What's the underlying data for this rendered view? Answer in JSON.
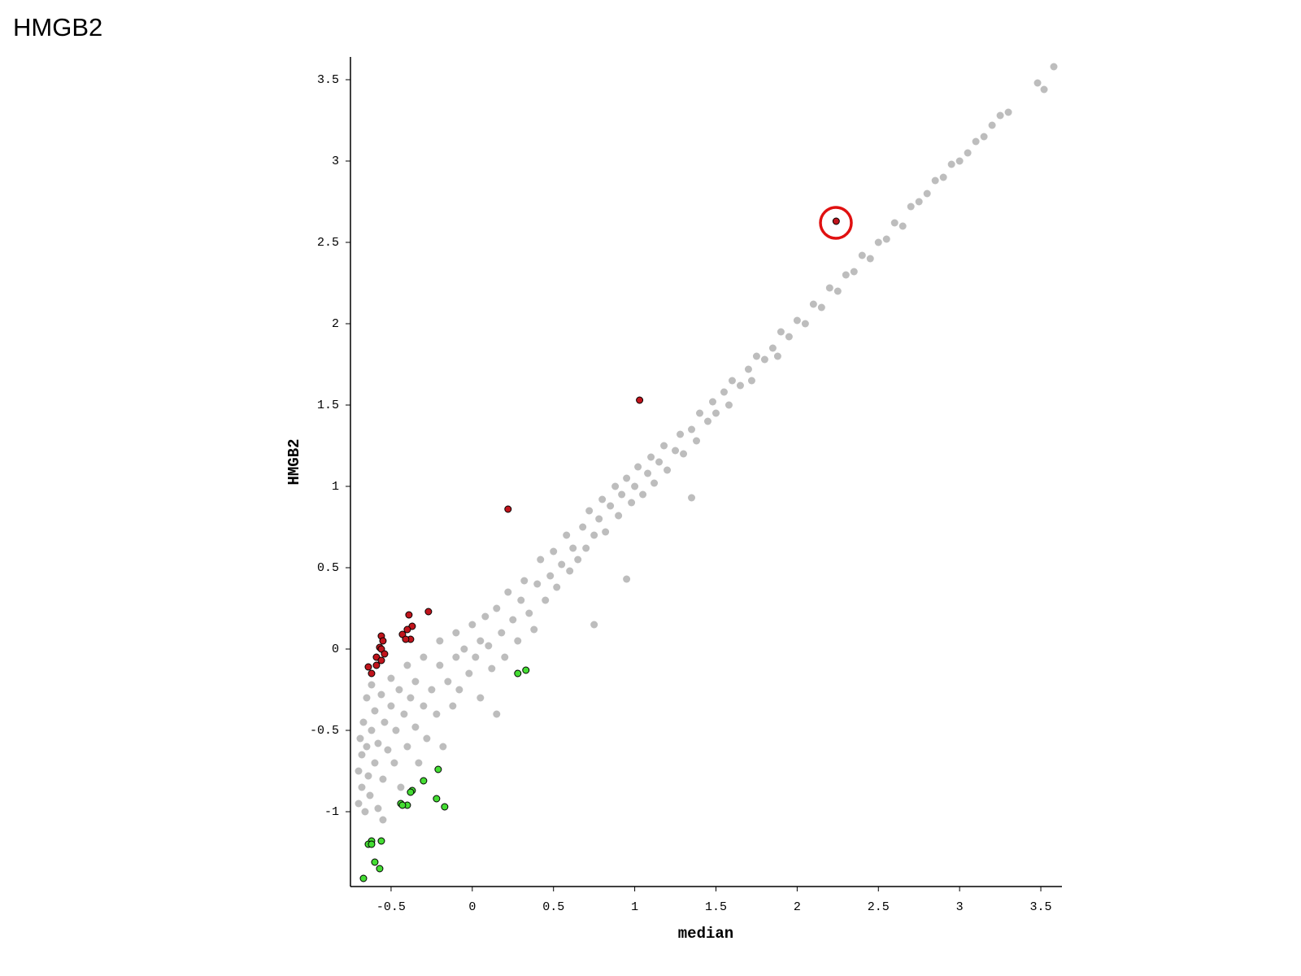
{
  "title": "HMGB2",
  "chart_data": {
    "type": "scatter",
    "xlabel": "median",
    "ylabel": "HMGB2",
    "xlim": [
      -0.75,
      3.63
    ],
    "ylim": [
      -1.46,
      3.64
    ],
    "xticks": [
      -0.5,
      0,
      0.5,
      1,
      1.5,
      2,
      2.5,
      3,
      3.5
    ],
    "yticks": [
      -1,
      -0.5,
      0,
      0.5,
      1,
      1.5,
      2,
      2.5,
      3,
      3.5
    ],
    "series": [
      {
        "color": "#bdbdbd",
        "x": [
          -0.7,
          -0.7,
          -0.69,
          -0.68,
          -0.68,
          -0.67,
          -0.66,
          -0.65,
          -0.65,
          -0.64,
          -0.63,
          -0.62,
          -0.62,
          -0.6,
          -0.6,
          -0.58,
          -0.58,
          -0.56,
          -0.55,
          -0.54,
          -0.52,
          -0.5,
          -0.5,
          -0.48,
          -0.47,
          -0.45,
          -0.44,
          -0.42,
          -0.4,
          -0.4,
          -0.38,
          -0.35,
          -0.35,
          -0.33,
          -0.3,
          -0.3,
          -0.28,
          -0.25,
          -0.22,
          -0.2,
          -0.2,
          -0.18,
          -0.15,
          -0.12,
          -0.1,
          -0.1,
          -0.08,
          -0.05,
          -0.02,
          0.0,
          0.02,
          0.05,
          0.05,
          0.08,
          0.1,
          0.12,
          0.15,
          0.18,
          0.2,
          0.22,
          0.25,
          0.28,
          0.3,
          0.32,
          0.35,
          0.38,
          0.4,
          0.42,
          0.45,
          0.48,
          0.5,
          0.52,
          0.55,
          0.58,
          0.6,
          0.62,
          0.65,
          0.68,
          0.7,
          0.72,
          0.75,
          0.78,
          0.8,
          0.82,
          0.85,
          0.88,
          0.9,
          0.92,
          0.95,
          0.98,
          1.0,
          1.02,
          1.05,
          1.08,
          1.1,
          1.12,
          1.15,
          1.18,
          1.2,
          1.25,
          1.28,
          1.3,
          1.35,
          1.38,
          1.4,
          1.45,
          1.48,
          1.5,
          1.55,
          1.58,
          1.6,
          1.65,
          1.7,
          1.72,
          1.75,
          1.8,
          1.85,
          1.88,
          1.9,
          1.95,
          2.0,
          2.05,
          2.1,
          2.15,
          2.2,
          2.25,
          2.3,
          2.35,
          2.4,
          2.45,
          2.5,
          2.55,
          2.6,
          2.65,
          2.7,
          2.75,
          2.8,
          2.85,
          2.9,
          2.95,
          3.0,
          3.05,
          3.1,
          3.15,
          3.2,
          3.25,
          3.3,
          3.48,
          3.52,
          3.58,
          0.95,
          0.75,
          1.35,
          0.15,
          -0.55
        ],
        "y": [
          -0.95,
          -0.75,
          -0.55,
          -0.85,
          -0.65,
          -0.45,
          -1.0,
          -0.3,
          -0.6,
          -0.78,
          -0.9,
          -0.5,
          -0.22,
          -0.7,
          -0.38,
          -0.98,
          -0.58,
          -0.28,
          -0.8,
          -0.45,
          -0.62,
          -0.35,
          -0.18,
          -0.7,
          -0.5,
          -0.25,
          -0.85,
          -0.4,
          -0.6,
          -0.1,
          -0.3,
          -0.48,
          -0.2,
          -0.7,
          -0.35,
          -0.05,
          -0.55,
          -0.25,
          -0.4,
          -0.1,
          0.05,
          -0.6,
          -0.2,
          -0.35,
          0.1,
          -0.05,
          -0.25,
          0.0,
          -0.15,
          0.15,
          -0.05,
          0.05,
          -0.3,
          0.2,
          0.02,
          -0.12,
          0.25,
          0.1,
          -0.05,
          0.35,
          0.18,
          0.05,
          0.3,
          0.42,
          0.22,
          0.12,
          0.4,
          0.55,
          0.3,
          0.45,
          0.6,
          0.38,
          0.52,
          0.7,
          0.48,
          0.62,
          0.55,
          0.75,
          0.62,
          0.85,
          0.7,
          0.8,
          0.92,
          0.72,
          0.88,
          1.0,
          0.82,
          0.95,
          1.05,
          0.9,
          1.0,
          1.12,
          0.95,
          1.08,
          1.18,
          1.02,
          1.15,
          1.25,
          1.1,
          1.22,
          1.32,
          1.2,
          1.35,
          1.28,
          1.45,
          1.4,
          1.52,
          1.45,
          1.58,
          1.5,
          1.65,
          1.62,
          1.72,
          1.65,
          1.8,
          1.78,
          1.85,
          1.8,
          1.95,
          1.92,
          2.02,
          2.0,
          2.12,
          2.1,
          2.22,
          2.2,
          2.3,
          2.32,
          2.42,
          2.4,
          2.5,
          2.52,
          2.62,
          2.6,
          2.72,
          2.75,
          2.8,
          2.88,
          2.9,
          2.98,
          3.0,
          3.05,
          3.12,
          3.15,
          3.22,
          3.28,
          3.3,
          3.48,
          3.44,
          3.58,
          0.43,
          0.15,
          0.93,
          -0.4,
          -1.05
        ]
      },
      {
        "color": "#c0141c",
        "x": [
          2.24,
          1.03,
          0.22,
          -0.27,
          -0.39,
          -0.37,
          -0.4,
          -0.43,
          -0.38,
          -0.41,
          -0.56,
          -0.55,
          -0.57,
          -0.56,
          -0.54,
          -0.59,
          -0.56,
          -0.59,
          -0.64,
          -0.62
        ],
        "y": [
          2.63,
          1.53,
          0.86,
          0.23,
          0.21,
          0.14,
          0.12,
          0.09,
          0.06,
          0.06,
          0.08,
          0.05,
          0.01,
          0.0,
          -0.03,
          -0.05,
          -0.07,
          -0.1,
          -0.11,
          -0.15
        ]
      },
      {
        "color": "#44dd33",
        "x": [
          0.33,
          0.28,
          -0.21,
          -0.3,
          -0.37,
          -0.38,
          -0.44,
          -0.4,
          -0.43,
          -0.22,
          -0.17,
          -0.56,
          -0.62,
          -0.64,
          -0.62,
          -0.6,
          -0.57,
          -0.67
        ],
        "y": [
          -0.13,
          -0.15,
          -0.74,
          -0.81,
          -0.87,
          -0.88,
          -0.95,
          -0.96,
          -0.96,
          -0.92,
          -0.97,
          -1.18,
          -1.18,
          -1.2,
          -1.2,
          -1.31,
          -1.35,
          -1.41
        ]
      }
    ]
  }
}
